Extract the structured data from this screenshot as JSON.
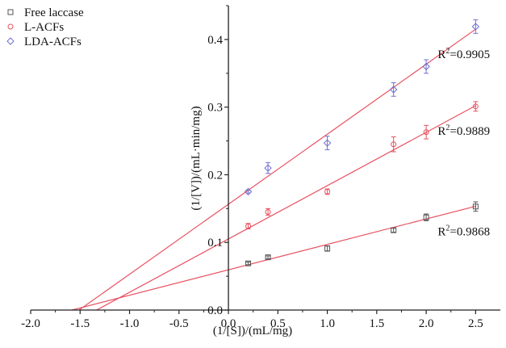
{
  "chart_data": {
    "type": "scatter",
    "title": "",
    "xlabel": "(1/[S])/(mL/mg)",
    "ylabel": "(1/[V])/(mL·min/mg)",
    "xlim": [
      -2.0,
      2.75
    ],
    "ylim": [
      0.0,
      0.45
    ],
    "x_ticks": [
      "-2.0",
      "-1.5",
      "-1.0",
      "-0.5",
      "0.0",
      "0.5",
      "1.0",
      "1.5",
      "2.0",
      "2.5"
    ],
    "y_ticks": [
      "0.0",
      "0.1",
      "0.2",
      "0.3",
      "0.4"
    ],
    "grid": false,
    "legend_position": "top-left",
    "x": [
      0.2,
      0.4,
      1.0,
      1.67,
      2.0,
      2.5
    ],
    "series": [
      {
        "name": "Free laccase",
        "color": "#555555",
        "marker": "square",
        "values": [
          0.069,
          0.078,
          0.091,
          0.118,
          0.137,
          0.153
        ],
        "errors": [
          0.002,
          0.002,
          0.004,
          0.003,
          0.005,
          0.007
        ],
        "fit": {
          "slope": 0.0376,
          "intercept": 0.0595
        },
        "r2_label": "R",
        "r2_sup": "2",
        "r2_value": "=0.9868"
      },
      {
        "name": "L-ACFs",
        "color": "#e8505f",
        "marker": "circle",
        "values": [
          0.124,
          0.145,
          0.175,
          0.245,
          0.263,
          0.301
        ],
        "errors": [
          0.004,
          0.005,
          0.004,
          0.011,
          0.01,
          0.007
        ],
        "fit": {
          "slope": 0.0788,
          "intercept": 0.1051
        },
        "r2_label": "R",
        "r2_sup": "2",
        "r2_value": "=0.9889"
      },
      {
        "name": "LDA-ACFs",
        "color": "#6f6fcf",
        "marker": "diamond",
        "values": [
          0.175,
          0.21,
          0.247,
          0.326,
          0.36,
          0.419
        ],
        "errors": [
          0.002,
          0.008,
          0.01,
          0.01,
          0.01,
          0.01
        ],
        "fit": {
          "slope": 0.1035,
          "intercept": 0.1564
        },
        "r2_label": "R",
        "r2_sup": "2",
        "r2_value": "=0.9905"
      }
    ],
    "fit_line_color": "#e8505f"
  }
}
